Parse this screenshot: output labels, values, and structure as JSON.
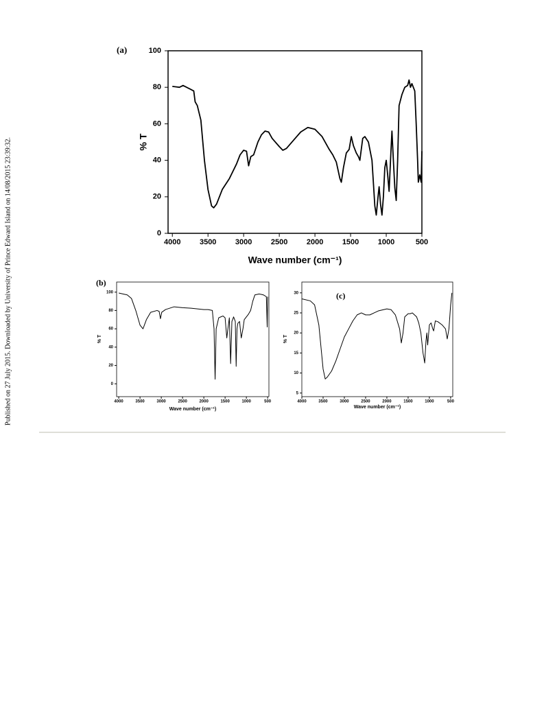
{
  "side_note": "Published on 27 July 2015. Downloaded by University of Prince Edward Island on 14/08/2015 23:39:32.",
  "chart_data": [
    {
      "type": "line",
      "panel_label": "(a)",
      "x_label": "Wave number (cm⁻¹)",
      "y_label": "% T",
      "color": "#000000",
      "xlim": [
        4060,
        500
      ],
      "ylim": [
        0,
        100
      ],
      "xticks": [
        4000,
        3500,
        3000,
        2500,
        2000,
        1500,
        1000,
        500
      ],
      "yticks": [
        0,
        20,
        40,
        60,
        80,
        100
      ],
      "x": [
        4000,
        3900,
        3850,
        3800,
        3750,
        3700,
        3680,
        3650,
        3600,
        3550,
        3500,
        3450,
        3420,
        3380,
        3300,
        3200,
        3100,
        3050,
        3000,
        2960,
        2930,
        2900,
        2860,
        2800,
        2750,
        2700,
        2650,
        2600,
        2500,
        2450,
        2400,
        2300,
        2200,
        2100,
        2000,
        1900,
        1800,
        1750,
        1700,
        1650,
        1630,
        1600,
        1560,
        1520,
        1490,
        1460,
        1420,
        1390,
        1370,
        1330,
        1300,
        1250,
        1200,
        1160,
        1140,
        1110,
        1100,
        1080,
        1060,
        1040,
        1020,
        1000,
        980,
        960,
        940,
        920,
        900,
        880,
        860,
        840,
        820,
        780,
        740,
        700,
        680,
        660,
        640,
        600,
        580,
        560,
        550,
        530,
        510,
        500
      ],
      "values": [
        80.5,
        80,
        81,
        80,
        79,
        78,
        72,
        70,
        62,
        40,
        24,
        15,
        14,
        16,
        24,
        30,
        38,
        43,
        45.5,
        45,
        37,
        42,
        43,
        50,
        54,
        56,
        55.5,
        52,
        47.5,
        45.5,
        46.5,
        51,
        55.5,
        58,
        57,
        53,
        46,
        43,
        39,
        30,
        28,
        36,
        44,
        46,
        53,
        48,
        44,
        42,
        40,
        52,
        53,
        50,
        40,
        15,
        10,
        22,
        25.5,
        16,
        10,
        20,
        36,
        40,
        32,
        23,
        40,
        56,
        40,
        25,
        18,
        40,
        70,
        76,
        80,
        81,
        84,
        80,
        82,
        78,
        60,
        40,
        28,
        32,
        28,
        45
      ]
    },
    {
      "type": "line",
      "panel_label": "(b)",
      "x_label": "Wave number (cm⁻¹)",
      "y_label": "% T",
      "color": "#000000",
      "xlim": [
        4050,
        470
      ],
      "ylim": [
        -14,
        111
      ],
      "xticks": [
        4000,
        3500,
        3000,
        2500,
        2000,
        1500,
        1000,
        500
      ],
      "yticks": [
        0,
        20,
        40,
        60,
        80,
        100
      ],
      "x": [
        4000,
        3800,
        3700,
        3600,
        3500,
        3430,
        3350,
        3250,
        3100,
        3050,
        3020,
        2990,
        2900,
        2700,
        2500,
        2300,
        2000,
        1900,
        1800,
        1760,
        1735,
        1710,
        1650,
        1600,
        1550,
        1500,
        1460,
        1440,
        1400,
        1370,
        1340,
        1300,
        1260,
        1240,
        1220,
        1200,
        1160,
        1120,
        1080,
        1050,
        1000,
        950,
        900,
        850,
        800,
        700,
        600,
        530,
        510,
        500
      ],
      "values": [
        99,
        97,
        93,
        80,
        64,
        60,
        70,
        78,
        80,
        79,
        71,
        78,
        81,
        84,
        83,
        82.5,
        81,
        81,
        80,
        60,
        5,
        60,
        72,
        73,
        74,
        72,
        50,
        58,
        72,
        22,
        68,
        73,
        68,
        19,
        60,
        66,
        68,
        50,
        60,
        70,
        73,
        76,
        80,
        90,
        97,
        98,
        97,
        95,
        62,
        95
      ]
    },
    {
      "type": "line",
      "panel_label": "(c)",
      "x_label": "Wave number (cm⁻¹)",
      "y_label": "% T",
      "color": "#000000",
      "xlim": [
        4000,
        450
      ],
      "ylim": [
        4.1,
        32.7
      ],
      "xticks": [
        4000,
        3500,
        3000,
        2500,
        2000,
        1500,
        1000,
        500
      ],
      "yticks": [
        5,
        10,
        15,
        20,
        25,
        30
      ],
      "x": [
        4000,
        3800,
        3700,
        3600,
        3500,
        3450,
        3400,
        3300,
        3200,
        3100,
        3000,
        2900,
        2800,
        2700,
        2600,
        2500,
        2400,
        2300,
        2200,
        2000,
        1900,
        1800,
        1700,
        1660,
        1620,
        1580,
        1500,
        1450,
        1400,
        1350,
        1300,
        1250,
        1200,
        1150,
        1110,
        1080,
        1060,
        1040,
        1000,
        960,
        920,
        900,
        860,
        800,
        700,
        620,
        580,
        540,
        500,
        470
      ],
      "values": [
        28.5,
        28,
        27,
        22,
        11,
        8.5,
        9,
        10.5,
        13,
        16,
        19,
        21,
        23,
        24.5,
        25,
        24.5,
        24.5,
        25,
        25.5,
        26,
        25.8,
        24.5,
        21,
        17.5,
        20,
        24,
        24.8,
        24.8,
        25,
        24.5,
        24,
        22.5,
        20,
        15,
        12.5,
        18,
        20,
        17,
        22,
        22.5,
        21,
        20.5,
        23,
        22.8,
        22,
        21,
        18.5,
        21,
        27,
        30
      ]
    }
  ]
}
